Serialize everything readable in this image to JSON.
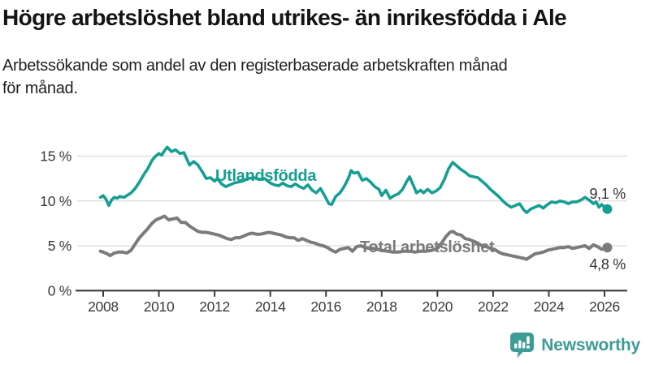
{
  "header": {
    "title": "Högre arbetslöshet bland utrikes- än inrikesfödda i Ale",
    "subtitle": "Arbetssökande som andel av den registerbaserade arbetskraften månad\nför månad."
  },
  "chart_data": {
    "type": "line",
    "title": "Högre arbetslöshet bland utrikes- än inrikesfödda i Ale",
    "subtitle": "Arbetssökande som andel av den registerbaserade arbetskraften månad för månad.",
    "grid": "horizontal",
    "legend_position": "inline-labels",
    "x_axis": {
      "ticks": [
        2008,
        2010,
        2012,
        2014,
        2016,
        2018,
        2020,
        2022,
        2024,
        2026
      ],
      "tick_labels": [
        "2008",
        "2010",
        "2012",
        "2014",
        "2016",
        "2018",
        "2020",
        "2022",
        "2024",
        "2026"
      ],
      "range": [
        2007.85,
        2026.8
      ]
    },
    "y_axis": {
      "tick_values": [
        0,
        5,
        10,
        15
      ],
      "tick_labels": [
        "0 %",
        "5 %",
        "10 %",
        "15 %"
      ],
      "range": [
        0,
        17
      ]
    },
    "series": [
      {
        "name": "Utlandsfödda",
        "color": "#169E92",
        "end_value_label": "9,1 %",
        "end_value": 9.1,
        "points": [
          [
            2007.9,
            10.4
          ],
          [
            2008.0,
            10.6
          ],
          [
            2008.1,
            10.2
          ],
          [
            2008.2,
            9.5
          ],
          [
            2008.3,
            10.1
          ],
          [
            2008.4,
            10.4
          ],
          [
            2008.5,
            10.3
          ],
          [
            2008.6,
            10.5
          ],
          [
            2008.75,
            10.4
          ],
          [
            2008.9,
            10.7
          ],
          [
            2009.0,
            10.9
          ],
          [
            2009.15,
            11.4
          ],
          [
            2009.3,
            12.1
          ],
          [
            2009.45,
            12.9
          ],
          [
            2009.6,
            13.6
          ],
          [
            2009.75,
            14.5
          ],
          [
            2009.85,
            14.9
          ],
          [
            2010.0,
            15.3
          ],
          [
            2010.1,
            15.1
          ],
          [
            2010.2,
            15.6
          ],
          [
            2010.3,
            16.0
          ],
          [
            2010.45,
            15.5
          ],
          [
            2010.6,
            15.7
          ],
          [
            2010.75,
            15.3
          ],
          [
            2010.9,
            15.4
          ],
          [
            2011.0,
            14.7
          ],
          [
            2011.1,
            14.0
          ],
          [
            2011.25,
            14.4
          ],
          [
            2011.4,
            14.0
          ],
          [
            2011.55,
            13.3
          ],
          [
            2011.7,
            12.5
          ],
          [
            2011.85,
            12.6
          ],
          [
            2012.0,
            12.2
          ],
          [
            2012.1,
            12.5
          ],
          [
            2012.25,
            11.9
          ],
          [
            2012.4,
            11.6
          ],
          [
            2012.55,
            11.8
          ],
          [
            2012.7,
            12.0
          ],
          [
            2012.85,
            12.1
          ],
          [
            2013.0,
            12.2
          ],
          [
            2013.2,
            12.5
          ],
          [
            2013.4,
            12.6
          ],
          [
            2013.6,
            12.4
          ],
          [
            2013.8,
            12.5
          ],
          [
            2014.0,
            12.0
          ],
          [
            2014.15,
            11.8
          ],
          [
            2014.3,
            11.7
          ],
          [
            2014.45,
            12.0
          ],
          [
            2014.6,
            11.7
          ],
          [
            2014.75,
            11.6
          ],
          [
            2014.9,
            11.9
          ],
          [
            2015.05,
            11.6
          ],
          [
            2015.2,
            11.4
          ],
          [
            2015.35,
            11.8
          ],
          [
            2015.5,
            11.2
          ],
          [
            2015.65,
            10.9
          ],
          [
            2015.8,
            11.4
          ],
          [
            2015.95,
            10.6
          ],
          [
            2016.1,
            9.7
          ],
          [
            2016.2,
            9.6
          ],
          [
            2016.35,
            10.5
          ],
          [
            2016.5,
            10.9
          ],
          [
            2016.65,
            11.6
          ],
          [
            2016.8,
            12.5
          ],
          [
            2016.9,
            13.4
          ],
          [
            2017.0,
            13.1
          ],
          [
            2017.15,
            13.2
          ],
          [
            2017.3,
            12.3
          ],
          [
            2017.45,
            12.5
          ],
          [
            2017.6,
            12.1
          ],
          [
            2017.75,
            11.6
          ],
          [
            2017.9,
            11.3
          ],
          [
            2018.0,
            10.6
          ],
          [
            2018.15,
            11.2
          ],
          [
            2018.3,
            10.3
          ],
          [
            2018.45,
            10.6
          ],
          [
            2018.6,
            10.8
          ],
          [
            2018.75,
            11.3
          ],
          [
            2018.9,
            12.2
          ],
          [
            2019.0,
            12.7
          ],
          [
            2019.1,
            12.0
          ],
          [
            2019.25,
            10.9
          ],
          [
            2019.4,
            11.2
          ],
          [
            2019.5,
            10.9
          ],
          [
            2019.65,
            11.3
          ],
          [
            2019.8,
            10.9
          ],
          [
            2019.95,
            11.1
          ],
          [
            2020.1,
            11.5
          ],
          [
            2020.25,
            12.4
          ],
          [
            2020.4,
            13.6
          ],
          [
            2020.55,
            14.3
          ],
          [
            2020.7,
            13.9
          ],
          [
            2020.85,
            13.5
          ],
          [
            2021.0,
            13.2
          ],
          [
            2021.15,
            12.8
          ],
          [
            2021.3,
            12.7
          ],
          [
            2021.45,
            12.6
          ],
          [
            2021.6,
            12.2
          ],
          [
            2021.75,
            11.8
          ],
          [
            2021.9,
            11.3
          ],
          [
            2022.05,
            10.9
          ],
          [
            2022.2,
            10.5
          ],
          [
            2022.35,
            10.0
          ],
          [
            2022.5,
            9.6
          ],
          [
            2022.65,
            9.3
          ],
          [
            2022.8,
            9.5
          ],
          [
            2022.95,
            9.7
          ],
          [
            2023.1,
            9.0
          ],
          [
            2023.2,
            8.7
          ],
          [
            2023.35,
            9.1
          ],
          [
            2023.5,
            9.3
          ],
          [
            2023.65,
            9.5
          ],
          [
            2023.8,
            9.2
          ],
          [
            2023.95,
            9.6
          ],
          [
            2024.1,
            9.9
          ],
          [
            2024.25,
            9.8
          ],
          [
            2024.4,
            10.0
          ],
          [
            2024.55,
            9.9
          ],
          [
            2024.7,
            9.7
          ],
          [
            2024.85,
            9.9
          ],
          [
            2025.0,
            9.9
          ],
          [
            2025.15,
            10.1
          ],
          [
            2025.3,
            10.4
          ],
          [
            2025.45,
            10.1
          ],
          [
            2025.6,
            9.7
          ],
          [
            2025.7,
            9.9
          ],
          [
            2025.8,
            9.3
          ],
          [
            2025.9,
            9.6
          ],
          [
            2026.0,
            9.3
          ],
          [
            2026.1,
            9.1
          ]
        ]
      },
      {
        "name": "Total arbetslöshet",
        "color": "#7B7B7B",
        "end_value_label": "4,8 %",
        "end_value": 4.8,
        "points": [
          [
            2007.9,
            4.4
          ],
          [
            2008.0,
            4.3
          ],
          [
            2008.15,
            4.1
          ],
          [
            2008.25,
            3.9
          ],
          [
            2008.4,
            4.2
          ],
          [
            2008.55,
            4.3
          ],
          [
            2008.7,
            4.3
          ],
          [
            2008.85,
            4.2
          ],
          [
            2009.0,
            4.5
          ],
          [
            2009.15,
            5.2
          ],
          [
            2009.3,
            5.9
          ],
          [
            2009.45,
            6.4
          ],
          [
            2009.6,
            6.9
          ],
          [
            2009.75,
            7.5
          ],
          [
            2009.9,
            7.9
          ],
          [
            2010.05,
            8.1
          ],
          [
            2010.2,
            8.3
          ],
          [
            2010.35,
            7.9
          ],
          [
            2010.5,
            8.0
          ],
          [
            2010.65,
            8.1
          ],
          [
            2010.8,
            7.6
          ],
          [
            2010.95,
            7.6
          ],
          [
            2011.1,
            7.2
          ],
          [
            2011.25,
            6.9
          ],
          [
            2011.4,
            6.6
          ],
          [
            2011.55,
            6.5
          ],
          [
            2011.7,
            6.5
          ],
          [
            2011.85,
            6.4
          ],
          [
            2012.0,
            6.3
          ],
          [
            2012.15,
            6.2
          ],
          [
            2012.3,
            6.0
          ],
          [
            2012.45,
            5.8
          ],
          [
            2012.6,
            5.7
          ],
          [
            2012.75,
            5.9
          ],
          [
            2012.9,
            5.9
          ],
          [
            2013.05,
            6.1
          ],
          [
            2013.2,
            6.3
          ],
          [
            2013.35,
            6.4
          ],
          [
            2013.5,
            6.3
          ],
          [
            2013.65,
            6.3
          ],
          [
            2013.8,
            6.4
          ],
          [
            2013.95,
            6.5
          ],
          [
            2014.1,
            6.4
          ],
          [
            2014.25,
            6.3
          ],
          [
            2014.4,
            6.2
          ],
          [
            2014.55,
            6.0
          ],
          [
            2014.7,
            5.9
          ],
          [
            2014.85,
            5.9
          ],
          [
            2015.0,
            5.6
          ],
          [
            2015.15,
            5.8
          ],
          [
            2015.3,
            5.6
          ],
          [
            2015.45,
            5.4
          ],
          [
            2015.6,
            5.3
          ],
          [
            2015.75,
            5.1
          ],
          [
            2015.9,
            5.0
          ],
          [
            2016.05,
            4.8
          ],
          [
            2016.2,
            4.5
          ],
          [
            2016.35,
            4.3
          ],
          [
            2016.5,
            4.6
          ],
          [
            2016.65,
            4.7
          ],
          [
            2016.8,
            4.8
          ],
          [
            2016.95,
            4.4
          ],
          [
            2017.1,
            4.9
          ],
          [
            2017.25,
            5.0
          ],
          [
            2017.4,
            4.8
          ],
          [
            2017.55,
            4.7
          ],
          [
            2017.7,
            4.7
          ],
          [
            2017.85,
            4.6
          ],
          [
            2018.0,
            4.5
          ],
          [
            2018.2,
            4.4
          ],
          [
            2018.4,
            4.3
          ],
          [
            2018.6,
            4.3
          ],
          [
            2018.8,
            4.4
          ],
          [
            2019.0,
            4.4
          ],
          [
            2019.2,
            4.3
          ],
          [
            2019.4,
            4.4
          ],
          [
            2019.6,
            4.4
          ],
          [
            2019.8,
            4.5
          ],
          [
            2020.0,
            4.7
          ],
          [
            2020.15,
            5.3
          ],
          [
            2020.3,
            6.0
          ],
          [
            2020.45,
            6.5
          ],
          [
            2020.55,
            6.6
          ],
          [
            2020.7,
            6.3
          ],
          [
            2020.85,
            6.2
          ],
          [
            2021.0,
            5.8
          ],
          [
            2021.15,
            5.7
          ],
          [
            2021.3,
            5.5
          ],
          [
            2021.45,
            5.3
          ],
          [
            2021.6,
            5.0
          ],
          [
            2021.75,
            4.9
          ],
          [
            2021.9,
            4.7
          ],
          [
            2022.05,
            4.6
          ],
          [
            2022.2,
            4.3
          ],
          [
            2022.35,
            4.1
          ],
          [
            2022.5,
            4.0
          ],
          [
            2022.65,
            3.9
          ],
          [
            2022.8,
            3.8
          ],
          [
            2022.95,
            3.7
          ],
          [
            2023.1,
            3.6
          ],
          [
            2023.2,
            3.5
          ],
          [
            2023.35,
            3.8
          ],
          [
            2023.5,
            4.1
          ],
          [
            2023.65,
            4.2
          ],
          [
            2023.8,
            4.3
          ],
          [
            2023.95,
            4.5
          ],
          [
            2024.1,
            4.6
          ],
          [
            2024.25,
            4.7
          ],
          [
            2024.4,
            4.8
          ],
          [
            2024.55,
            4.8
          ],
          [
            2024.7,
            4.9
          ],
          [
            2024.85,
            4.7
          ],
          [
            2025.0,
            4.8
          ],
          [
            2025.15,
            4.9
          ],
          [
            2025.3,
            5.0
          ],
          [
            2025.45,
            4.7
          ],
          [
            2025.6,
            5.1
          ],
          [
            2025.75,
            4.9
          ],
          [
            2025.9,
            4.6
          ],
          [
            2026.0,
            4.7
          ],
          [
            2026.1,
            4.8
          ]
        ]
      }
    ]
  },
  "branding": {
    "logo_text": "Newsworthy",
    "logo_color": "#3D9C94",
    "logo_icon": "bar-chart-speech-bubble-icon"
  },
  "colors": {
    "foreign_born_line": "#169E92",
    "total_line": "#7B7B7B",
    "gridline": "#DCDCDC",
    "axis": "#3A3A3A",
    "value_label": "#333333"
  }
}
